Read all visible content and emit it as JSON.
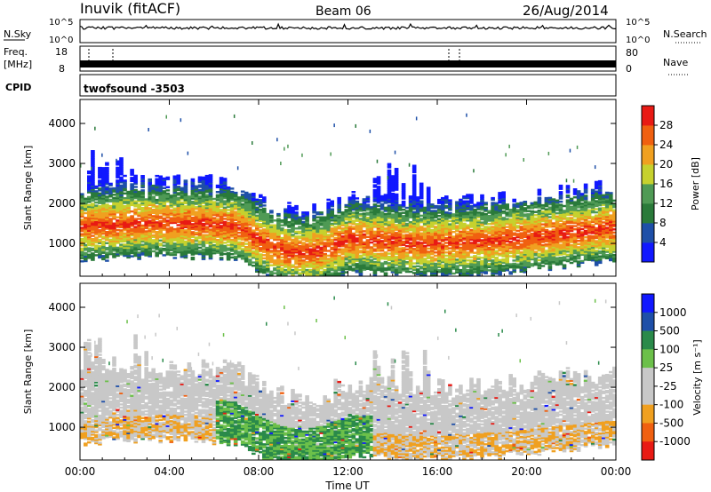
{
  "header": {
    "station": "Inuvik (fitACF)",
    "beam": "Beam 06",
    "date": "26/Aug/2014"
  },
  "top_panels": {
    "nsky_label": "N.Sky",
    "nsky_ticks": [
      "10^5",
      "10^0"
    ],
    "nsearch_label": "N.Search",
    "nsearch_ticks": [
      "10^5",
      "10^0"
    ],
    "freq_label": "Freq.",
    "freq_unit": "[MHz]",
    "freq_ticks": [
      "18",
      "8"
    ],
    "nave_label": "Nave",
    "nave_ticks": [
      "80",
      "0"
    ],
    "cpid_label": "CPID",
    "cpid_value": "twofsound -3503"
  },
  "colors": {
    "power": [
      "#1018ff",
      "#1e4fa8",
      "#2a7a3a",
      "#4f9a55",
      "#c6d12e",
      "#f0a020",
      "#f06010",
      "#e81a14"
    ],
    "velocity": [
      "#e81a14",
      "#f06010",
      "#f0a020",
      "#c8c8c8",
      "#c8c8c8",
      "#6cc04a",
      "#2a8a4a",
      "#1e4fa8",
      "#1018ff"
    ]
  },
  "chart_data": [
    {
      "type": "heatmap",
      "name": "power",
      "ylabel": "Slant Range [km]",
      "xlabel": "",
      "x_ticks": [
        "00:00",
        "04:00",
        "08:00",
        "12:00",
        "16:00",
        "20:00",
        "00:00"
      ],
      "xlim_hours": [
        0,
        24
      ],
      "y_ticks": [
        1000,
        2000,
        3000,
        4000
      ],
      "ylim": [
        180,
        4600
      ],
      "colorbar": {
        "label": "Power [dB]",
        "ticks": [
          "4",
          "8",
          "12",
          "16",
          "20",
          "24",
          "28"
        ],
        "range": [
          0,
          32
        ]
      }
    },
    {
      "type": "heatmap",
      "name": "velocity",
      "ylabel": "Slant Range [km]",
      "xlabel": "Time UT",
      "x_ticks": [
        "00:00",
        "04:00",
        "08:00",
        "12:00",
        "16:00",
        "20:00",
        "00:00"
      ],
      "xlim_hours": [
        0,
        24
      ],
      "y_ticks": [
        1000,
        2000,
        3000,
        4000
      ],
      "ylim": [
        180,
        4600
      ],
      "colorbar": {
        "label": "Velocity [m s⁻¹]",
        "ticks": [
          "1000",
          "500",
          "100",
          "25",
          "-25",
          "-100",
          "-500",
          "-1000"
        ]
      }
    }
  ]
}
